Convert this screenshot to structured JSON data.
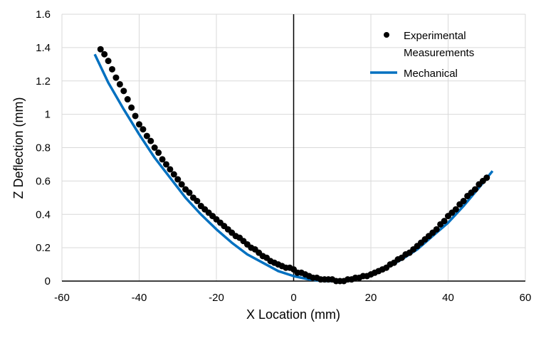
{
  "chart_data": {
    "type": "scatter",
    "title": "",
    "xlabel": "X Location (mm)",
    "ylabel": "Z Deflection (mm)",
    "xlim": [
      -60,
      60
    ],
    "ylim": [
      0,
      1.6
    ],
    "xticks": [
      -60,
      -40,
      -20,
      0,
      20,
      40,
      60
    ],
    "yticks": [
      0,
      0.2,
      0.4,
      0.6,
      0.8,
      1,
      1.2,
      1.4,
      1.6
    ],
    "xtick_labels": [
      "-60",
      "-40",
      "-20",
      "0",
      "20",
      "40",
      "60"
    ],
    "ytick_labels": [
      "0",
      "0.2",
      "0.4",
      "0.6",
      "0.8",
      "1",
      "1.2",
      "1.4",
      "1.6"
    ],
    "grid": true,
    "legend_position": "top-right",
    "series": [
      {
        "name": "Experimental Measurements",
        "name_lines": [
          "Experimental",
          "Measurements"
        ],
        "style": "markers",
        "color": "#000000",
        "x": [
          -50,
          -49,
          -48,
          -47,
          -46,
          -45,
          -44,
          -43,
          -42,
          -41,
          -40,
          -39,
          -38,
          -37,
          -36,
          -35,
          -34,
          -33,
          -32,
          -31,
          -30,
          -29,
          -28,
          -27,
          -26,
          -25,
          -24,
          -23,
          -22,
          -21,
          -20,
          -19,
          -18,
          -17,
          -16,
          -15,
          -14,
          -13,
          -12,
          -11,
          -10,
          -9,
          -8,
          -7,
          -6,
          -5,
          -4,
          -3,
          -2,
          -1,
          0,
          1,
          2,
          3,
          4,
          5,
          6,
          7,
          8,
          9,
          10,
          11,
          12,
          13,
          14,
          15,
          16,
          17,
          18,
          19,
          20,
          21,
          22,
          23,
          24,
          25,
          26,
          27,
          28,
          29,
          30,
          31,
          32,
          33,
          34,
          35,
          36,
          37,
          38,
          39,
          40,
          41,
          42,
          43,
          44,
          45,
          46,
          47,
          48,
          49,
          50
        ],
        "y": [
          1.39,
          1.36,
          1.32,
          1.27,
          1.22,
          1.18,
          1.14,
          1.09,
          1.04,
          0.99,
          0.94,
          0.91,
          0.87,
          0.84,
          0.8,
          0.77,
          0.73,
          0.7,
          0.67,
          0.64,
          0.61,
          0.58,
          0.55,
          0.53,
          0.5,
          0.48,
          0.45,
          0.43,
          0.41,
          0.39,
          0.37,
          0.35,
          0.33,
          0.31,
          0.29,
          0.27,
          0.26,
          0.24,
          0.22,
          0.2,
          0.19,
          0.17,
          0.15,
          0.14,
          0.12,
          0.11,
          0.1,
          0.09,
          0.08,
          0.08,
          0.07,
          0.05,
          0.05,
          0.04,
          0.03,
          0.02,
          0.02,
          0.01,
          0.01,
          0.01,
          0.01,
          0.0,
          0.0,
          0.0,
          0.01,
          0.01,
          0.02,
          0.02,
          0.03,
          0.03,
          0.04,
          0.05,
          0.06,
          0.07,
          0.08,
          0.1,
          0.11,
          0.13,
          0.14,
          0.16,
          0.17,
          0.19,
          0.21,
          0.23,
          0.25,
          0.27,
          0.29,
          0.31,
          0.34,
          0.36,
          0.39,
          0.41,
          0.43,
          0.46,
          0.48,
          0.51,
          0.53,
          0.55,
          0.58,
          0.6,
          0.62
        ]
      },
      {
        "name": "Mechanical",
        "style": "line",
        "color": "#0070C0",
        "x": [
          -51.5,
          -48,
          -44,
          -40,
          -36,
          -32,
          -28,
          -24,
          -20,
          -16,
          -12,
          -8,
          -4,
          0,
          4,
          8,
          12,
          16,
          20,
          24,
          28,
          32,
          36,
          40,
          44,
          48,
          51.5
        ],
        "y": [
          1.36,
          1.19,
          1.03,
          0.88,
          0.74,
          0.62,
          0.5,
          0.4,
          0.31,
          0.23,
          0.16,
          0.11,
          0.06,
          0.03,
          0.01,
          0.0,
          0.0,
          0.02,
          0.04,
          0.08,
          0.13,
          0.19,
          0.27,
          0.35,
          0.45,
          0.56,
          0.66
        ]
      }
    ]
  }
}
